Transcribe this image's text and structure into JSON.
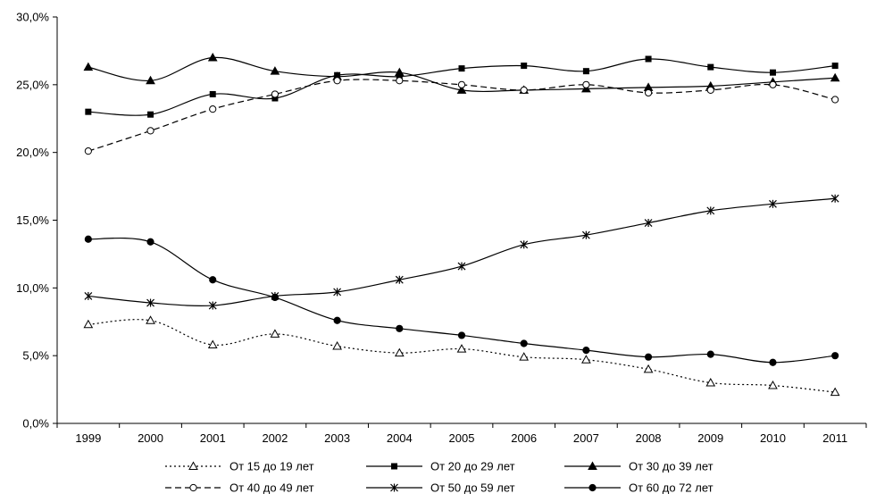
{
  "chart_data": {
    "type": "line",
    "categories": [
      "1999",
      "2000",
      "2001",
      "2002",
      "2003",
      "2004",
      "2005",
      "2006",
      "2007",
      "2008",
      "2009",
      "2010",
      "2011"
    ],
    "ylim": [
      0,
      30
    ],
    "y_ticks": [
      "0,0%",
      "5,0%",
      "10,0%",
      "15,0%",
      "20,0%",
      "25,0%",
      "30,0%"
    ],
    "y_tick_values": [
      0,
      5,
      10,
      15,
      20,
      25,
      30
    ],
    "grid": false,
    "legend_position": "bottom",
    "series": [
      {
        "name": "От 15 до 19 лет",
        "marker": "triangle-open",
        "line": "dotted",
        "values": [
          7.3,
          7.6,
          5.8,
          6.6,
          5.7,
          5.2,
          5.5,
          4.9,
          4.7,
          4.0,
          3.0,
          2.8,
          2.3
        ]
      },
      {
        "name": "От 20 до 29 лет",
        "marker": "square",
        "line": "solid",
        "values": [
          23.0,
          22.8,
          24.3,
          24.0,
          25.7,
          25.6,
          26.2,
          26.4,
          26.0,
          26.9,
          26.3,
          25.9,
          26.4
        ]
      },
      {
        "name": "От 30 до 39 лет",
        "marker": "triangle",
        "line": "solid",
        "values": [
          26.3,
          25.3,
          27.0,
          26.0,
          25.6,
          25.9,
          24.6,
          24.6,
          24.7,
          24.8,
          24.9,
          25.2,
          25.5
        ]
      },
      {
        "name": "От 40 до 49 лет",
        "marker": "circle-open",
        "line": "dashed",
        "values": [
          20.1,
          21.6,
          23.2,
          24.3,
          25.3,
          25.3,
          25.0,
          24.6,
          25.0,
          24.4,
          24.6,
          25.0,
          23.9
        ]
      },
      {
        "name": "От 50 до 59 лет",
        "marker": "star",
        "line": "solid",
        "values": [
          9.4,
          8.9,
          8.7,
          9.4,
          9.7,
          10.6,
          11.6,
          13.2,
          13.9,
          14.8,
          15.7,
          16.2,
          16.6
        ]
      },
      {
        "name": "От 60 до 72 лет",
        "marker": "circle",
        "line": "solid",
        "values": [
          13.6,
          13.4,
          10.6,
          9.3,
          7.6,
          7.0,
          6.5,
          5.9,
          5.4,
          4.9,
          5.1,
          4.5,
          5.0
        ]
      }
    ]
  }
}
